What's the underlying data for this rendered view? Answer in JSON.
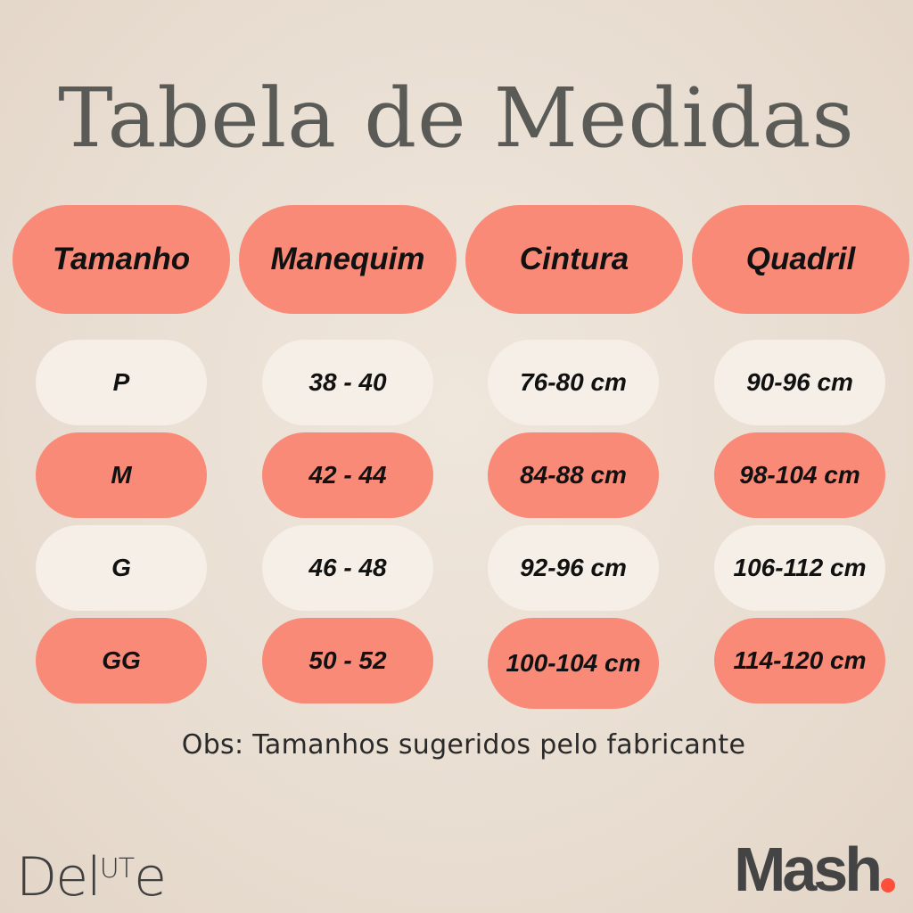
{
  "title": "Tabela de Medidas",
  "headers": [
    "Tamanho",
    "Manequim",
    "Cintura",
    "Quadril"
  ],
  "rows": [
    [
      "P",
      "38 - 40",
      "76-80 cm",
      "90-96 cm"
    ],
    [
      "M",
      "42 - 44",
      "84-88 cm",
      "98-104 cm"
    ],
    [
      "G",
      "46 - 48",
      "92-96 cm",
      "106-112 cm"
    ],
    [
      "GG",
      "50 - 52",
      "100-104 cm",
      "114-120 cm"
    ]
  ],
  "note": "Obs: Tamanhos sugeridos pelo fabricante",
  "logos": {
    "left": {
      "part1": "Del",
      "part2": "UT",
      "part3": "e"
    },
    "right": "Mash"
  },
  "colors": {
    "coral": "#f98a78",
    "cream": "#f5efe8",
    "title": "#5a5a57",
    "accent": "#ff4f3a"
  }
}
